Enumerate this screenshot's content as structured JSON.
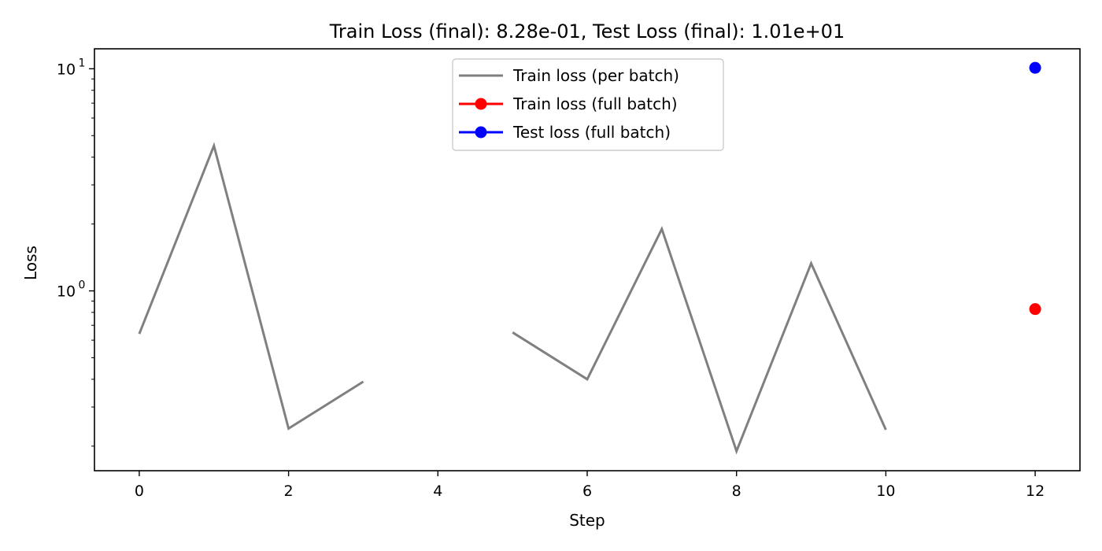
{
  "chart_data": {
    "type": "line",
    "title": "Train Loss (final): 8.28e-01, Test Loss (final): 1.01e+01",
    "xlabel": "Step",
    "ylabel": "Loss",
    "x_ticks": [
      "0",
      "2",
      "4",
      "6",
      "8",
      "10",
      "12"
    ],
    "y_ticks": [
      {
        "value": 1,
        "base": "10",
        "exp": "0"
      },
      {
        "value": 10,
        "base": "10",
        "exp": "1"
      }
    ],
    "xlim": [
      -0.6,
      12.6
    ],
    "ylim": [
      0.155,
      12.3
    ],
    "yscale": "log",
    "grid": false,
    "legend_position": "top-center",
    "series": [
      {
        "name": "Train loss (per batch)",
        "style": "line",
        "color": "#808080",
        "points": [
          [
            0,
            0.64
          ],
          [
            1,
            4.5
          ],
          [
            2,
            0.24
          ],
          [
            3,
            0.39
          ],
          [
            4,
            null
          ],
          [
            5,
            0.65
          ],
          [
            6,
            0.4
          ],
          [
            7,
            1.9
          ],
          [
            8,
            0.19
          ],
          [
            9,
            1.33
          ],
          [
            10,
            0.237
          ]
        ]
      },
      {
        "name": "Train loss (full batch)",
        "style": "marker",
        "color": "#ff0000",
        "points": [
          [
            12,
            0.828
          ]
        ]
      },
      {
        "name": "Test loss (full batch)",
        "style": "marker",
        "color": "#0000ff",
        "points": [
          [
            12,
            10.1
          ]
        ]
      }
    ]
  }
}
